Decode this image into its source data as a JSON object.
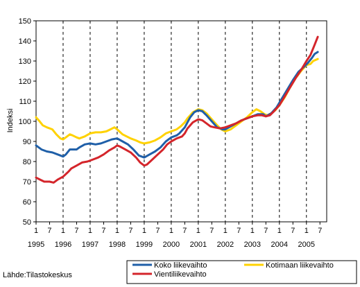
{
  "chart_data": {
    "type": "line",
    "ylabel": "Indeksi",
    "ylim": [
      50,
      150
    ],
    "yticks": [
      50,
      60,
      70,
      80,
      90,
      100,
      110,
      120,
      130,
      140,
      150
    ],
    "x_start": 1995.0,
    "x_end": 2005.75,
    "month_ticks": [
      {
        "label": "1",
        "x": 1995.0
      },
      {
        "label": "7",
        "x": 1995.5
      },
      {
        "label": "1",
        "x": 1996.0
      },
      {
        "label": "7",
        "x": 1996.5
      },
      {
        "label": "1",
        "x": 1997.0
      },
      {
        "label": "7",
        "x": 1997.5
      },
      {
        "label": "1",
        "x": 1998.0
      },
      {
        "label": "7",
        "x": 1998.5
      },
      {
        "label": "1",
        "x": 1999.0
      },
      {
        "label": "7",
        "x": 1999.5
      },
      {
        "label": "1",
        "x": 2000.0
      },
      {
        "label": "7",
        "x": 2000.5
      },
      {
        "label": "1",
        "x": 2001.0
      },
      {
        "label": "7",
        "x": 2001.5
      },
      {
        "label": "1",
        "x": 2002.0
      },
      {
        "label": "7",
        "x": 2002.5
      },
      {
        "label": "1",
        "x": 2003.0
      },
      {
        "label": "7",
        "x": 2003.5
      },
      {
        "label": "1",
        "x": 2004.0
      },
      {
        "label": "7",
        "x": 2004.5
      },
      {
        "label": "1",
        "x": 2005.0
      },
      {
        "label": "7",
        "x": 2005.5
      }
    ],
    "year_labels": [
      {
        "label": "1995",
        "x": 1995.0
      },
      {
        "label": "1996",
        "x": 1996.0
      },
      {
        "label": "1997",
        "x": 1997.0
      },
      {
        "label": "1998",
        "x": 1998.0
      },
      {
        "label": "1999",
        "x": 1999.0
      },
      {
        "label": "2000",
        "x": 2000.0
      },
      {
        "label": "2001",
        "x": 2001.0
      },
      {
        "label": "2002",
        "x": 2002.0
      },
      {
        "label": "2003",
        "x": 2003.0
      },
      {
        "label": "2004",
        "x": 2004.0
      },
      {
        "label": "2005",
        "x": 2005.0
      }
    ],
    "grid": "dashed vertical at January",
    "legend_placement": "bottom-right",
    "source": "Lähde:Tilastokeskus",
    "series": [
      {
        "name": "Koko liikevaihto",
        "color": "#1f5fa8",
        "points": [
          [
            1995.0,
            88
          ],
          [
            1995.2,
            86
          ],
          [
            1995.4,
            85
          ],
          [
            1995.6,
            84.5
          ],
          [
            1995.8,
            83.5
          ],
          [
            1996.0,
            82.5
          ],
          [
            1996.1,
            83.5
          ],
          [
            1996.25,
            86
          ],
          [
            1996.4,
            86
          ],
          [
            1996.5,
            86
          ],
          [
            1996.6,
            87
          ],
          [
            1996.8,
            88.5
          ],
          [
            1997.0,
            89
          ],
          [
            1997.2,
            88.5
          ],
          [
            1997.4,
            89
          ],
          [
            1997.6,
            90
          ],
          [
            1997.8,
            91
          ],
          [
            1998.0,
            91.5
          ],
          [
            1998.2,
            90
          ],
          [
            1998.4,
            88.5
          ],
          [
            1998.6,
            86
          ],
          [
            1998.8,
            83
          ],
          [
            1999.0,
            82
          ],
          [
            1999.2,
            83.5
          ],
          [
            1999.4,
            85
          ],
          [
            1999.6,
            87
          ],
          [
            1999.8,
            90
          ],
          [
            2000.0,
            92
          ],
          [
            2000.2,
            93
          ],
          [
            2000.3,
            94
          ],
          [
            2000.5,
            97
          ],
          [
            2000.7,
            102
          ],
          [
            2000.85,
            104.5
          ],
          [
            2001.0,
            105.5
          ],
          [
            2001.15,
            105
          ],
          [
            2001.3,
            103
          ],
          [
            2001.5,
            100
          ],
          [
            2001.7,
            97
          ],
          [
            2001.9,
            96
          ],
          [
            2002.0,
            96
          ],
          [
            2002.2,
            97.5
          ],
          [
            2002.4,
            99
          ],
          [
            2002.6,
            100.5
          ],
          [
            2002.8,
            101.5
          ],
          [
            2003.0,
            102.5
          ],
          [
            2003.2,
            103.5
          ],
          [
            2003.4,
            103.5
          ],
          [
            2003.5,
            102.5
          ],
          [
            2003.7,
            104
          ],
          [
            2003.9,
            107
          ],
          [
            2004.1,
            111.5
          ],
          [
            2004.3,
            116
          ],
          [
            2004.5,
            120.5
          ],
          [
            2004.7,
            124.5
          ],
          [
            2004.9,
            127
          ],
          [
            2005.05,
            129
          ],
          [
            2005.2,
            131.5
          ],
          [
            2005.3,
            133.5
          ],
          [
            2005.42,
            134.5
          ]
        ]
      },
      {
        "name": "Kotimaan liikevaihto",
        "color": "#ffd200",
        "points": [
          [
            1995.0,
            102
          ],
          [
            1995.1,
            100.5
          ],
          [
            1995.25,
            98
          ],
          [
            1995.4,
            97
          ],
          [
            1995.6,
            96
          ],
          [
            1995.75,
            93.5
          ],
          [
            1995.9,
            91.5
          ],
          [
            1996.0,
            91
          ],
          [
            1996.1,
            92
          ],
          [
            1996.25,
            93.5
          ],
          [
            1996.35,
            93
          ],
          [
            1996.5,
            92
          ],
          [
            1996.6,
            91.5
          ],
          [
            1996.8,
            92.5
          ],
          [
            1997.0,
            94
          ],
          [
            1997.2,
            94.5
          ],
          [
            1997.4,
            94.5
          ],
          [
            1997.6,
            95
          ],
          [
            1997.75,
            96
          ],
          [
            1997.9,
            97
          ],
          [
            1998.0,
            96
          ],
          [
            1998.2,
            93.5
          ],
          [
            1998.5,
            91.5
          ],
          [
            1998.7,
            90.5
          ],
          [
            1998.85,
            89.5
          ],
          [
            1999.0,
            89
          ],
          [
            1999.2,
            89.5
          ],
          [
            1999.4,
            90.5
          ],
          [
            1999.6,
            92
          ],
          [
            1999.8,
            94
          ],
          [
            2000.0,
            95
          ],
          [
            2000.2,
            96
          ],
          [
            2000.35,
            97.5
          ],
          [
            2000.5,
            99.5
          ],
          [
            2000.6,
            101.5
          ],
          [
            2000.8,
            104.5
          ],
          [
            2001.0,
            106
          ],
          [
            2001.15,
            105.5
          ],
          [
            2001.3,
            104
          ],
          [
            2001.5,
            101
          ],
          [
            2001.7,
            98
          ],
          [
            2001.85,
            96
          ],
          [
            2002.0,
            95
          ],
          [
            2002.2,
            96
          ],
          [
            2002.4,
            98
          ],
          [
            2002.6,
            100
          ],
          [
            2002.8,
            102
          ],
          [
            2003.0,
            104.5
          ],
          [
            2003.15,
            106
          ],
          [
            2003.3,
            105
          ],
          [
            2003.45,
            103.5
          ],
          [
            2003.55,
            103
          ],
          [
            2003.7,
            104
          ],
          [
            2003.85,
            105.5
          ],
          [
            2004.0,
            108
          ],
          [
            2004.2,
            112
          ],
          [
            2004.4,
            117
          ],
          [
            2004.6,
            121.5
          ],
          [
            2004.8,
            125
          ],
          [
            2005.0,
            128
          ],
          [
            2005.15,
            128.5
          ],
          [
            2005.25,
            130
          ],
          [
            2005.42,
            131
          ]
        ]
      },
      {
        "name": "Vientiliikevaihto",
        "color": "#d4252b",
        "points": [
          [
            1995.0,
            72
          ],
          [
            1995.15,
            71
          ],
          [
            1995.3,
            70
          ],
          [
            1995.5,
            70
          ],
          [
            1995.65,
            69.5
          ],
          [
            1995.8,
            71
          ],
          [
            1996.0,
            72.5
          ],
          [
            1996.2,
            75
          ],
          [
            1996.3,
            76.5
          ],
          [
            1996.5,
            78
          ],
          [
            1996.7,
            79.5
          ],
          [
            1996.9,
            80
          ],
          [
            1997.1,
            81
          ],
          [
            1997.3,
            82
          ],
          [
            1997.5,
            83.5
          ],
          [
            1997.7,
            85.5
          ],
          [
            1997.9,
            87
          ],
          [
            1998.0,
            88
          ],
          [
            1998.1,
            87.5
          ],
          [
            1998.3,
            86
          ],
          [
            1998.5,
            84.5
          ],
          [
            1998.7,
            82
          ],
          [
            1998.85,
            79.5
          ],
          [
            1999.0,
            78
          ],
          [
            1999.1,
            78.5
          ],
          [
            1999.3,
            81
          ],
          [
            1999.5,
            83.5
          ],
          [
            1999.7,
            86
          ],
          [
            1999.85,
            88.5
          ],
          [
            2000.0,
            90
          ],
          [
            2000.2,
            91.5
          ],
          [
            2000.4,
            92.5
          ],
          [
            2000.5,
            94
          ],
          [
            2000.6,
            96.5
          ],
          [
            2000.8,
            99.5
          ],
          [
            2001.0,
            101
          ],
          [
            2001.15,
            100.5
          ],
          [
            2001.3,
            99
          ],
          [
            2001.45,
            97.5
          ],
          [
            2001.6,
            97
          ],
          [
            2001.8,
            96.5
          ],
          [
            2002.0,
            97
          ],
          [
            2002.2,
            98
          ],
          [
            2002.4,
            99
          ],
          [
            2002.6,
            100.5
          ],
          [
            2002.8,
            101.5
          ],
          [
            2003.0,
            102.5
          ],
          [
            2003.2,
            103
          ],
          [
            2003.35,
            103
          ],
          [
            2003.5,
            102.5
          ],
          [
            2003.65,
            103
          ],
          [
            2003.8,
            105
          ],
          [
            2004.0,
            108
          ],
          [
            2004.2,
            112.5
          ],
          [
            2004.4,
            117
          ],
          [
            2004.6,
            121.5
          ],
          [
            2004.8,
            125.5
          ],
          [
            2005.0,
            130
          ],
          [
            2005.15,
            133
          ],
          [
            2005.3,
            138
          ],
          [
            2005.42,
            142
          ]
        ]
      }
    ]
  }
}
